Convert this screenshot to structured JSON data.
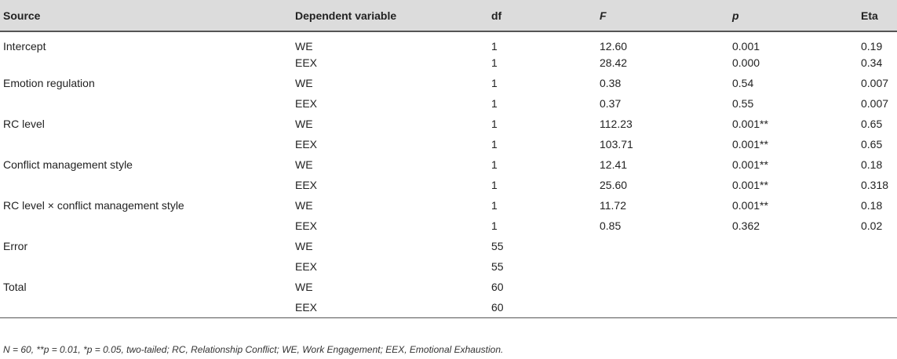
{
  "table": {
    "headers": {
      "source": "Source",
      "dependent_variable": "Dependent variable",
      "df": "df",
      "f": "F",
      "p": "p",
      "eta": "Eta"
    },
    "rows": [
      {
        "source": "Intercept",
        "dv": "WE",
        "df": "1",
        "f": "12.60",
        "p": "0.001",
        "eta": "0.19"
      },
      {
        "source": "",
        "dv": "EEX",
        "df": "1",
        "f": "28.42",
        "p": "0.000",
        "eta": "0.34"
      },
      {
        "source": "Emotion regulation",
        "dv": "WE",
        "df": "1",
        "f": "0.38",
        "p": "0.54",
        "eta": "0.007"
      },
      {
        "source": "",
        "dv": "EEX",
        "df": "1",
        "f": "0.37",
        "p": "0.55",
        "eta": "0.007"
      },
      {
        "source": "RC level",
        "dv": "WE",
        "df": "1",
        "f": "112.23",
        "p": "0.001**",
        "eta": "0.65"
      },
      {
        "source": "",
        "dv": "EEX",
        "df": "1",
        "f": "103.71",
        "p": "0.001**",
        "eta": "0.65"
      },
      {
        "source": "Conflict management style",
        "dv": "WE",
        "df": "1",
        "f": "12.41",
        "p": "0.001**",
        "eta": "0.18"
      },
      {
        "source": "",
        "dv": "EEX",
        "df": "1",
        "f": "25.60",
        "p": "0.001**",
        "eta": "0.318"
      },
      {
        "source": "RC level × conflict management style",
        "dv": "WE",
        "df": "1",
        "f": "11.72",
        "p": "0.001**",
        "eta": "0.18"
      },
      {
        "source": "",
        "dv": "EEX",
        "df": "1",
        "f": "0.85",
        "p": "0.362",
        "eta": "0.02"
      },
      {
        "source": "Error",
        "dv": "WE",
        "df": "55",
        "f": "",
        "p": "",
        "eta": ""
      },
      {
        "source": "",
        "dv": "EEX",
        "df": "55",
        "f": "",
        "p": "",
        "eta": ""
      },
      {
        "source": "Total",
        "dv": "WE",
        "df": "60",
        "f": "",
        "p": "",
        "eta": ""
      },
      {
        "source": "",
        "dv": "EEX",
        "df": "60",
        "f": "",
        "p": "",
        "eta": ""
      }
    ]
  },
  "note": "N = 60, **p = 0.01, *p = 0.05, two-tailed; RC, Relationship Conflict; WE, Work Engagement; EEX, Emotional Exhaustion."
}
